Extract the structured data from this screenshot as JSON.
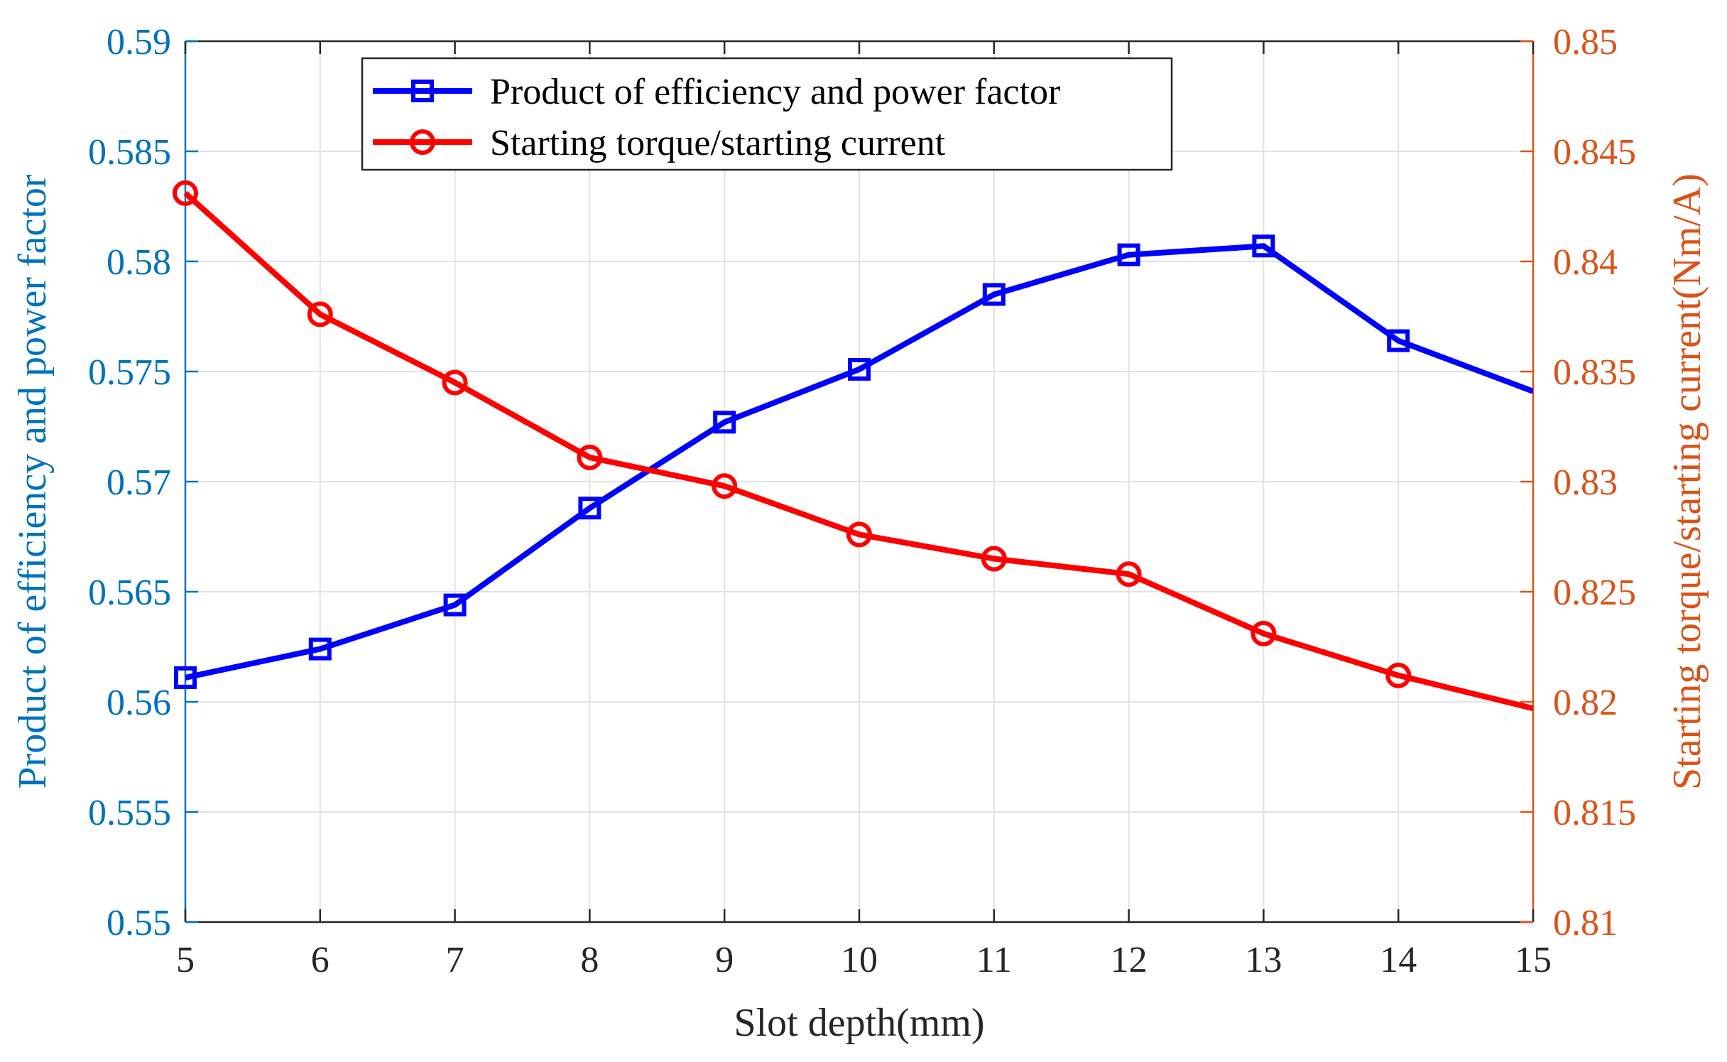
{
  "chart_data": {
    "type": "line",
    "title": "",
    "xlabel": "Slot depth(mm)",
    "ylabel_left": "Product of efficiency and power factor",
    "ylabel_right": "Starting torque/starting current(Nm/A)",
    "x": [
      5,
      6,
      7,
      8,
      9,
      10,
      11,
      12,
      13,
      14,
      15
    ],
    "xlim": [
      5,
      15
    ],
    "xticks": [
      5,
      6,
      7,
      8,
      9,
      10,
      11,
      12,
      13,
      14,
      15
    ],
    "xtick_labels": [
      "5",
      "6",
      "7",
      "8",
      "9",
      "10",
      "11",
      "12",
      "13",
      "14",
      "15"
    ],
    "ylim_left": [
      0.55,
      0.59
    ],
    "yticks_left": [
      0.55,
      0.555,
      0.56,
      0.565,
      0.57,
      0.575,
      0.58,
      0.585,
      0.59
    ],
    "ytick_labels_left": [
      "0.55",
      "0.555",
      "0.56",
      "0.565",
      "0.57",
      "0.575",
      "0.58",
      "0.585",
      "0.59"
    ],
    "ylim_right": [
      0.81,
      0.85
    ],
    "yticks_right": [
      0.81,
      0.815,
      0.82,
      0.825,
      0.83,
      0.835,
      0.84,
      0.845,
      0.85
    ],
    "ytick_labels_right": [
      "0.81",
      "0.815",
      "0.82",
      "0.825",
      "0.83",
      "0.835",
      "0.84",
      "0.845",
      "0.85"
    ],
    "grid": true,
    "legend_position": "top-center",
    "series": [
      {
        "name": "Product of efficiency and power factor",
        "axis": "left",
        "color": "#0000ff",
        "marker": "square",
        "values": [
          0.5611,
          0.5624,
          0.5644,
          0.5688,
          0.5727,
          0.5751,
          0.5785,
          0.5803,
          0.5807,
          0.5764,
          0.5741
        ]
      },
      {
        "name": "Starting torque/starting current",
        "axis": "right",
        "color": "#ff0000",
        "marker": "circle",
        "values": [
          0.8431,
          0.8376,
          0.8345,
          0.8311,
          0.8298,
          0.8276,
          0.8265,
          0.8258,
          0.8231,
          0.8212,
          0.8197
        ]
      }
    ],
    "colors": {
      "left_axis": "#0072bd",
      "right_axis": "#d95319",
      "grid": "#dfe3e8",
      "axis_line": "#262626"
    }
  }
}
